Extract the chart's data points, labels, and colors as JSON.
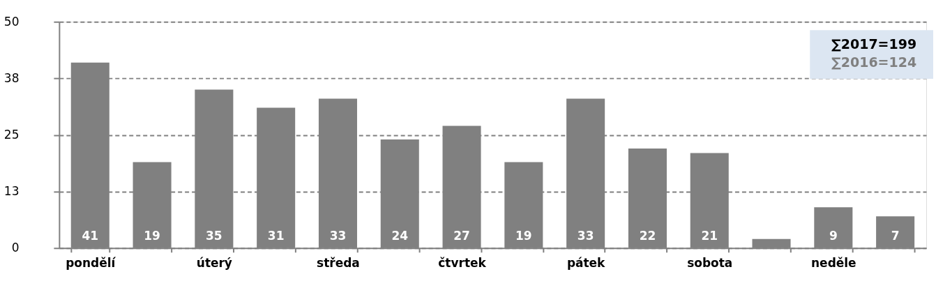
{
  "chart_data": {
    "type": "bar",
    "categories": [
      "pondělí",
      null,
      "úterý",
      null,
      "středa",
      null,
      "čtvrtek",
      null,
      "pátek",
      null,
      "sobota",
      null,
      "neděle",
      null
    ],
    "values": [
      41,
      19,
      35,
      31,
      33,
      24,
      27,
      19,
      33,
      22,
      21,
      2,
      9,
      7
    ],
    "value_labels": [
      "41",
      "19",
      "35",
      "31",
      "33",
      "24",
      "27",
      "19",
      "33",
      "22",
      "21",
      null,
      "9",
      "7"
    ],
    "color": "#808080",
    "ylim": [
      0,
      50
    ],
    "yticks": [
      0,
      {
        "value": 12.5,
        "label": "13"
      },
      25,
      {
        "value": 37.5,
        "label": "38"
      },
      50
    ],
    "grid": "y",
    "annotations": [
      "∑2017=199",
      "∑2016=124"
    ]
  }
}
